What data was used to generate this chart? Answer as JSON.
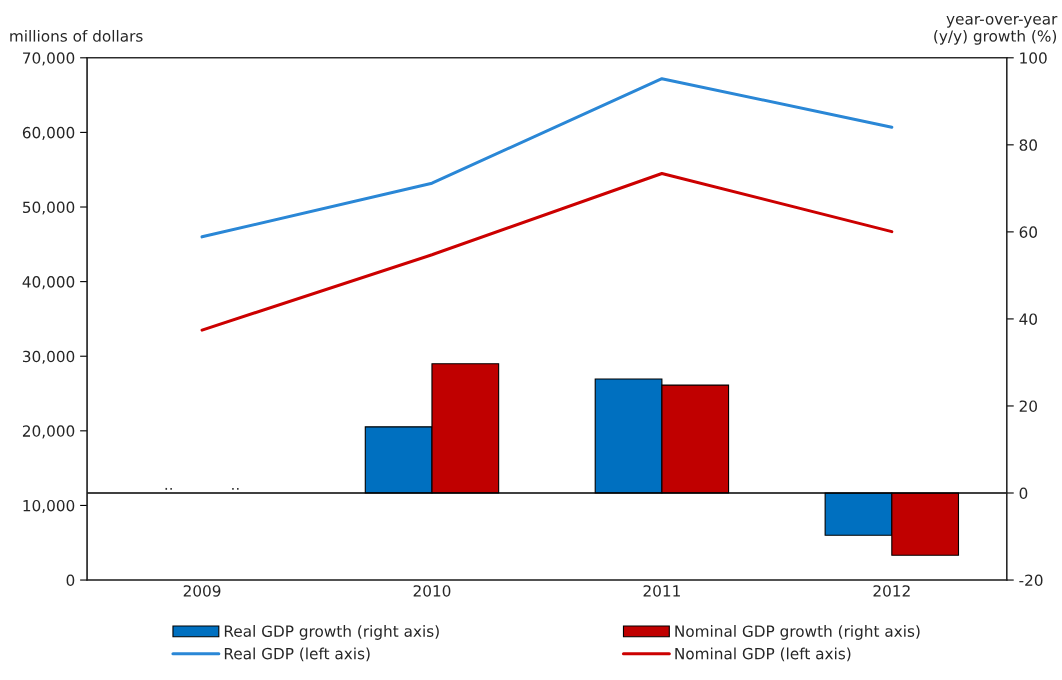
{
  "chart_data": {
    "type": "bar",
    "ylabel": "millions of dollars",
    "y2label": "year-over-year\n(y/y) growth (%)",
    "categories": [
      "2009",
      "2010",
      "2011",
      "2012"
    ],
    "series": [
      {
        "name": "Real GDP growth (right axis)",
        "axis": "y2",
        "color": "#0070c0",
        "values": [
          null,
          15.2,
          26.2,
          -9.7
        ],
        "value_labels": [
          "..",
          null,
          null,
          null
        ]
      },
      {
        "name": "Nominal GDP growth (right axis)",
        "axis": "y2",
        "color": "#c00000",
        "values": [
          null,
          29.7,
          24.8,
          -14.3
        ],
        "value_labels": [
          "..",
          null,
          null,
          null
        ]
      },
      {
        "name": "Real GDP (left axis)",
        "type": "line",
        "color": "#2a87d6",
        "values": [
          46000,
          53200,
          67200,
          60700
        ]
      },
      {
        "name": "Nominal GDP (left axis)",
        "type": "line",
        "color": "#cc0000",
        "values": [
          33500,
          43600,
          54500,
          46700
        ]
      }
    ],
    "ylim": [
      0,
      70000
    ],
    "yticks": [
      0,
      {
        "value": 10000,
        "label": "10,000"
      },
      {
        "value": 20000,
        "label": "20,000"
      },
      {
        "value": 30000,
        "label": "30,000"
      },
      {
        "value": 40000,
        "label": "40,000"
      },
      {
        "value": 50000,
        "label": "50,000"
      },
      {
        "value": 60000,
        "label": "60,000"
      },
      {
        "value": 70000,
        "label": "70,000"
      }
    ],
    "y2lim": [
      -20,
      100
    ],
    "y2ticks": [
      -20,
      0,
      20,
      40,
      60,
      80,
      100
    ],
    "ref_lines": [
      {
        "axis": "y2",
        "value": 0,
        "color": "#000000"
      }
    ],
    "grid": false,
    "legend": "bottom"
  }
}
